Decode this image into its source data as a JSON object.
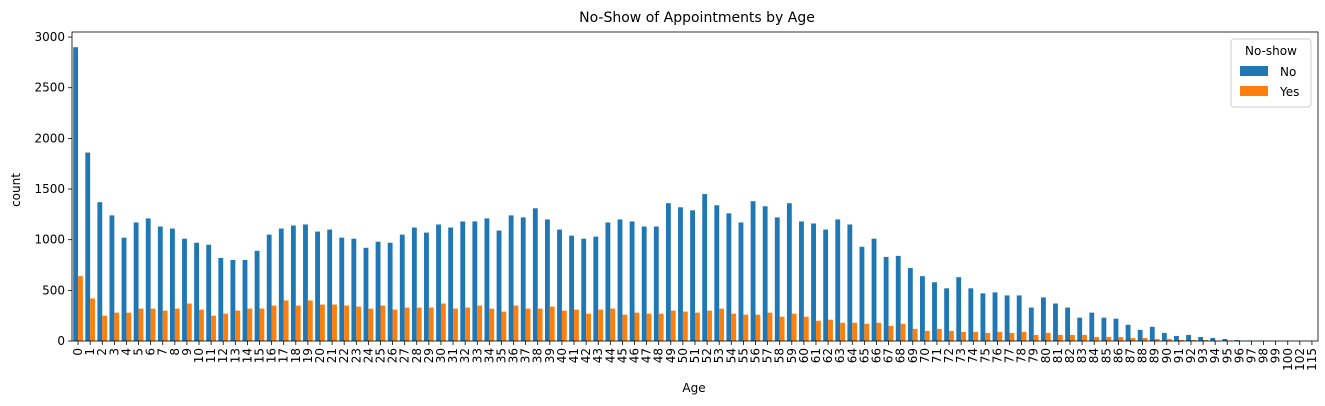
{
  "chart_data": {
    "type": "bar",
    "title": "No-Show of Appointments by Age",
    "xlabel": "Age",
    "ylabel": "count",
    "ylim": [
      0,
      3050
    ],
    "yticks": [
      0,
      500,
      1000,
      1500,
      2000,
      2500,
      3000
    ],
    "grid": false,
    "legend": {
      "title": "No-show",
      "placement": "top-right"
    },
    "categories": [
      "0",
      "1",
      "2",
      "3",
      "4",
      "5",
      "6",
      "7",
      "8",
      "9",
      "10",
      "11",
      "12",
      "13",
      "14",
      "15",
      "16",
      "17",
      "18",
      "19",
      "20",
      "21",
      "22",
      "23",
      "24",
      "25",
      "26",
      "27",
      "28",
      "29",
      "30",
      "31",
      "32",
      "33",
      "34",
      "35",
      "36",
      "37",
      "38",
      "39",
      "40",
      "41",
      "42",
      "43",
      "44",
      "45",
      "46",
      "47",
      "48",
      "49",
      "50",
      "51",
      "52",
      "53",
      "54",
      "55",
      "56",
      "57",
      "58",
      "59",
      "60",
      "61",
      "62",
      "63",
      "64",
      "65",
      "66",
      "67",
      "68",
      "69",
      "70",
      "71",
      "72",
      "73",
      "74",
      "75",
      "76",
      "77",
      "78",
      "79",
      "80",
      "81",
      "82",
      "83",
      "84",
      "85",
      "86",
      "87",
      "88",
      "89",
      "90",
      "91",
      "92",
      "93",
      "94",
      "95",
      "96",
      "97",
      "98",
      "99",
      "100",
      "102",
      "115"
    ],
    "series": [
      {
        "name": "No",
        "color": "#1f77b4",
        "values": [
          2900,
          1860,
          1370,
          1240,
          1020,
          1170,
          1210,
          1130,
          1110,
          1010,
          970,
          950,
          820,
          800,
          800,
          890,
          1050,
          1110,
          1140,
          1150,
          1080,
          1100,
          1020,
          1010,
          920,
          980,
          970,
          1050,
          1120,
          1070,
          1150,
          1120,
          1180,
          1180,
          1210,
          1090,
          1240,
          1220,
          1310,
          1200,
          1100,
          1040,
          1010,
          1030,
          1170,
          1200,
          1180,
          1130,
          1130,
          1360,
          1320,
          1290,
          1450,
          1340,
          1260,
          1170,
          1380,
          1330,
          1220,
          1360,
          1180,
          1160,
          1100,
          1200,
          1150,
          930,
          1010,
          830,
          840,
          720,
          640,
          580,
          520,
          630,
          520,
          470,
          480,
          450,
          450,
          330,
          430,
          370,
          330,
          230,
          280,
          230,
          220,
          160,
          110,
          140,
          80,
          50,
          60,
          40,
          30,
          20,
          10,
          5,
          5,
          2,
          2,
          1,
          1
        ]
      },
      {
        "name": "Yes",
        "color": "#ff7f0e",
        "values": [
          640,
          420,
          250,
          280,
          280,
          320,
          320,
          300,
          320,
          370,
          310,
          250,
          270,
          300,
          320,
          320,
          350,
          400,
          350,
          400,
          360,
          360,
          350,
          340,
          320,
          350,
          310,
          330,
          330,
          330,
          370,
          320,
          330,
          350,
          320,
          290,
          350,
          320,
          320,
          340,
          300,
          310,
          270,
          310,
          320,
          260,
          280,
          270,
          270,
          300,
          290,
          280,
          300,
          320,
          270,
          260,
          260,
          280,
          240,
          270,
          240,
          200,
          210,
          180,
          180,
          170,
          180,
          150,
          170,
          120,
          100,
          120,
          100,
          90,
          90,
          80,
          90,
          80,
          90,
          60,
          80,
          60,
          60,
          60,
          40,
          40,
          40,
          30,
          30,
          20,
          20,
          10,
          10,
          10,
          5,
          5,
          2,
          1,
          1,
          0,
          0,
          0,
          0
        ]
      }
    ]
  }
}
